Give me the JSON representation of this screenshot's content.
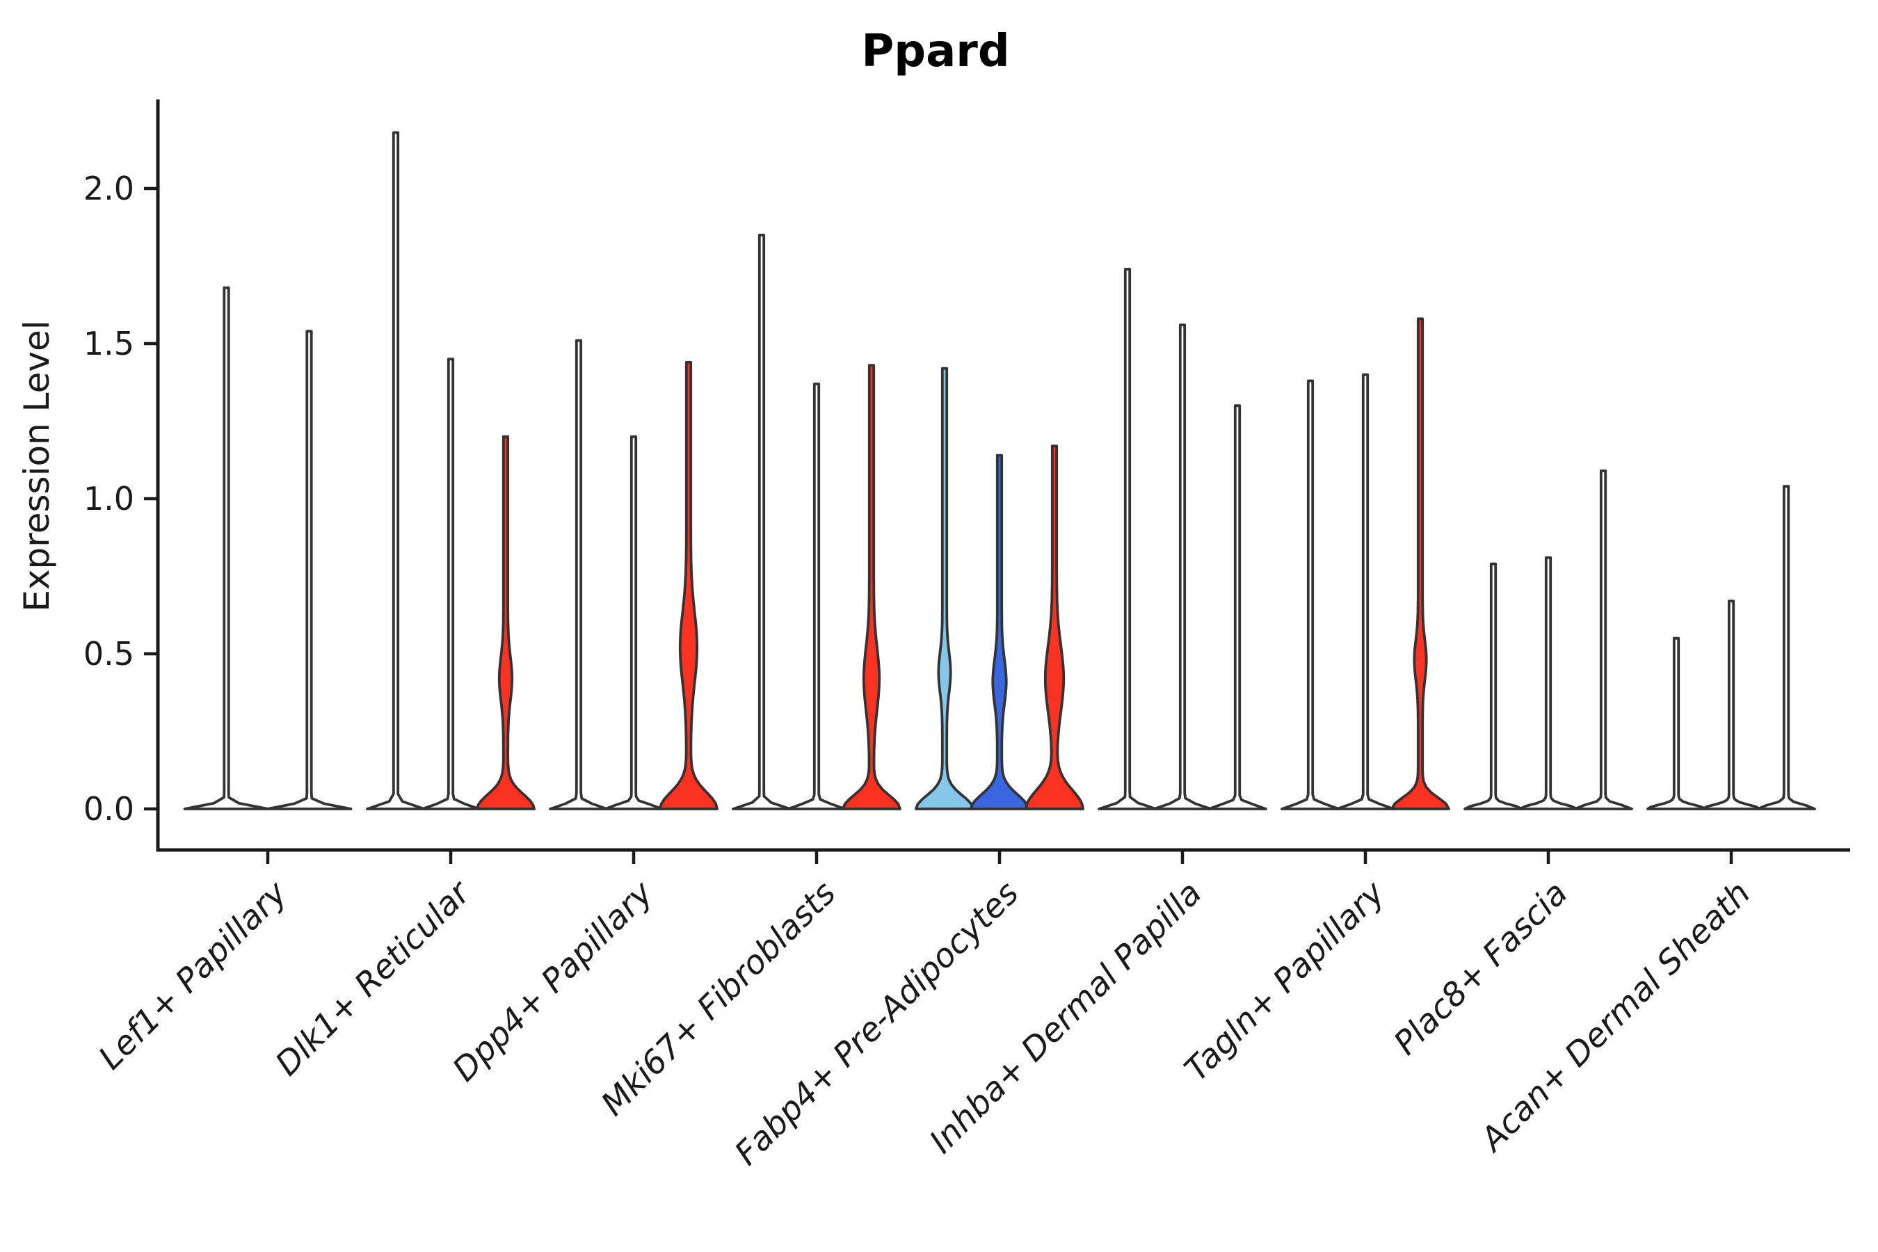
{
  "title": "Ppard",
  "ylabel": "Expression Level",
  "colors": {
    "axis": "#1a1a1a",
    "outline": "#333333",
    "white": "#ffffff",
    "red": "#F93222",
    "light_blue": "#85C6E9",
    "dark_blue": "#3A67E0"
  },
  "chart_data": {
    "type": "violin",
    "title": "Ppard",
    "xlabel": "",
    "ylabel": "Expression Level",
    "ylim": [
      0,
      2.29
    ],
    "yticks": [
      0.0,
      0.5,
      1.0,
      1.5,
      2.0
    ],
    "grid": false,
    "legend": "none",
    "note": "Split violin plot; most density massed at 0 (flat base), thin spike to max expression; colored violins have a secondary density mode (lens).",
    "categories": [
      "Lef1+ Papillary",
      "Dlk1+ Reticular",
      "Dpp4+ Papillary",
      "Mki67+ Fibroblasts",
      "Fabp4+ Pre-Adipocytes",
      "Inhba+ Dermal Papilla",
      "Tagln+ Papillary",
      "Plac8+ Fascia",
      "Acan+ Dermal Sheath"
    ],
    "groups": [
      {
        "category": "Lef1+ Papillary",
        "violins": [
          {
            "fill": "white",
            "max": 1.68,
            "base_sigma": 0.016
          },
          {
            "fill": "white",
            "max": 1.54,
            "base_sigma": 0.016
          }
        ]
      },
      {
        "category": "Dlk1+ Reticular",
        "violins": [
          {
            "fill": "white",
            "max": 2.18,
            "base_sigma": 0.018
          },
          {
            "fill": "white",
            "max": 1.45,
            "base_sigma": 0.018
          },
          {
            "fill": "red",
            "max": 1.2,
            "base_sigma": 0.065,
            "lens": {
              "mid": 0.42,
              "sigma": 0.1,
              "hw": 6
            }
          }
        ]
      },
      {
        "category": "Dpp4+ Papillary",
        "violins": [
          {
            "fill": "white",
            "max": 1.51,
            "base_sigma": 0.018
          },
          {
            "fill": "white",
            "max": 1.2,
            "base_sigma": 0.018
          },
          {
            "fill": "red",
            "max": 1.44,
            "base_sigma": 0.075,
            "lens": {
              "mid": 0.52,
              "sigma": 0.16,
              "hw": 9
            }
          }
        ]
      },
      {
        "category": "Mki67+ Fibroblasts",
        "violins": [
          {
            "fill": "white",
            "max": 1.85,
            "base_sigma": 0.018
          },
          {
            "fill": "white",
            "max": 1.37,
            "base_sigma": 0.018
          },
          {
            "fill": "red",
            "max": 1.43,
            "base_sigma": 0.06,
            "lens": {
              "mid": 0.42,
              "sigma": 0.14,
              "hw": 8
            }
          }
        ]
      },
      {
        "category": "Fabp4+ Pre-Adipocytes",
        "violins": [
          {
            "fill": "light_blue",
            "max": 1.42,
            "base_sigma": 0.06,
            "lens": {
              "mid": 0.44,
              "sigma": 0.09,
              "hw": 5.5
            }
          },
          {
            "fill": "dark_blue",
            "max": 1.14,
            "base_sigma": 0.065,
            "lens": {
              "mid": 0.41,
              "sigma": 0.1,
              "hw": 6.5
            }
          },
          {
            "fill": "red",
            "max": 1.17,
            "base_sigma": 0.085,
            "lens": {
              "mid": 0.42,
              "sigma": 0.15,
              "hw": 10
            }
          }
        ]
      },
      {
        "category": "Inhba+ Dermal Papilla",
        "violins": [
          {
            "fill": "white",
            "max": 1.74,
            "base_sigma": 0.018
          },
          {
            "fill": "white",
            "max": 1.56,
            "base_sigma": 0.018
          },
          {
            "fill": "white",
            "max": 1.3,
            "base_sigma": 0.018
          }
        ]
      },
      {
        "category": "Tagln+ Papillary",
        "violins": [
          {
            "fill": "white",
            "max": 1.38,
            "base_sigma": 0.018
          },
          {
            "fill": "white",
            "max": 1.4,
            "base_sigma": 0.018
          },
          {
            "fill": "red",
            "max": 1.58,
            "base_sigma": 0.05,
            "lens": {
              "mid": 0.48,
              "sigma": 0.09,
              "hw": 5.5
            }
          }
        ]
      },
      {
        "category": "Plac8+ Fascia",
        "violins": [
          {
            "fill": "white",
            "max": 0.79,
            "base_sigma": 0.018
          },
          {
            "fill": "white",
            "max": 0.81,
            "base_sigma": 0.018
          },
          {
            "fill": "white",
            "max": 1.09,
            "base_sigma": 0.018
          }
        ]
      },
      {
        "category": "Acan+ Dermal Sheath",
        "violins": [
          {
            "fill": "white",
            "max": 0.55,
            "base_sigma": 0.018
          },
          {
            "fill": "white",
            "max": 0.67,
            "base_sigma": 0.018
          },
          {
            "fill": "white",
            "max": 1.04,
            "base_sigma": 0.018
          }
        ]
      }
    ]
  }
}
